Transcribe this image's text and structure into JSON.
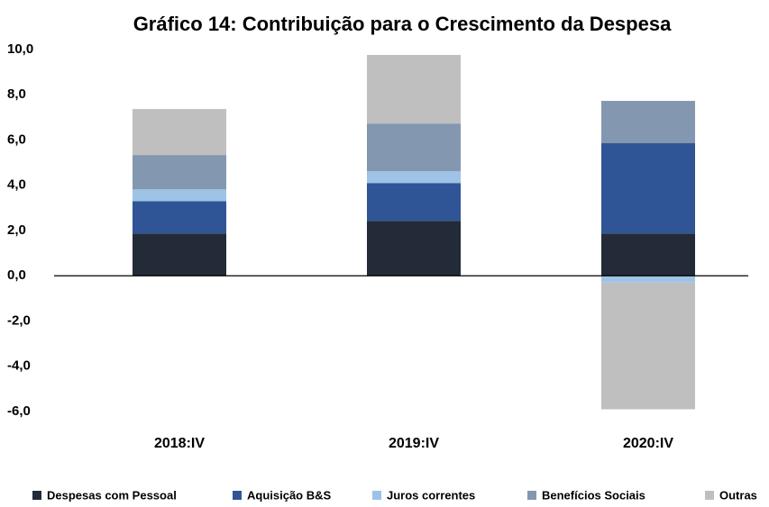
{
  "chart_data": {
    "type": "stacked_bar",
    "title": "Gráfico 14: Contribuição para o Crescimento da Despesa",
    "categories": [
      "2018:IV",
      "2019:IV",
      "2020:IV"
    ],
    "series": [
      {
        "name": "Despesas com Pessoal",
        "color": "#232b38",
        "values": [
          1.87,
          2.43,
          1.87
        ]
      },
      {
        "name": "Aquisição B&S",
        "color": "#2f5597",
        "values": [
          1.43,
          1.67,
          3.99
        ]
      },
      {
        "name": "Juros correntes",
        "color": "#9dc3e6",
        "values": [
          0.52,
          0.52,
          -0.3
        ]
      },
      {
        "name": "Benefícios Sociais",
        "color": "#8497b0",
        "values": [
          1.52,
          2.11,
          1.87
        ]
      },
      {
        "name": "Outras",
        "color": "#bfbfbf",
        "values": [
          2.03,
          3.03,
          -5.6
        ]
      }
    ],
    "ylim": [
      -6,
      10
    ],
    "yticks": [
      {
        "value": -6,
        "label": "-6,0"
      },
      {
        "value": -4,
        "label": "-4,0"
      },
      {
        "value": -2,
        "label": "-2,0"
      },
      {
        "value": 0,
        "label": "0,0"
      },
      {
        "value": 2,
        "label": "2,0"
      },
      {
        "value": 4,
        "label": "4,0"
      },
      {
        "value": 6,
        "label": "6,0"
      },
      {
        "value": 8,
        "label": "8,0"
      },
      {
        "value": 10,
        "label": "10,0"
      }
    ],
    "grid": false,
    "legend": "bottom"
  }
}
